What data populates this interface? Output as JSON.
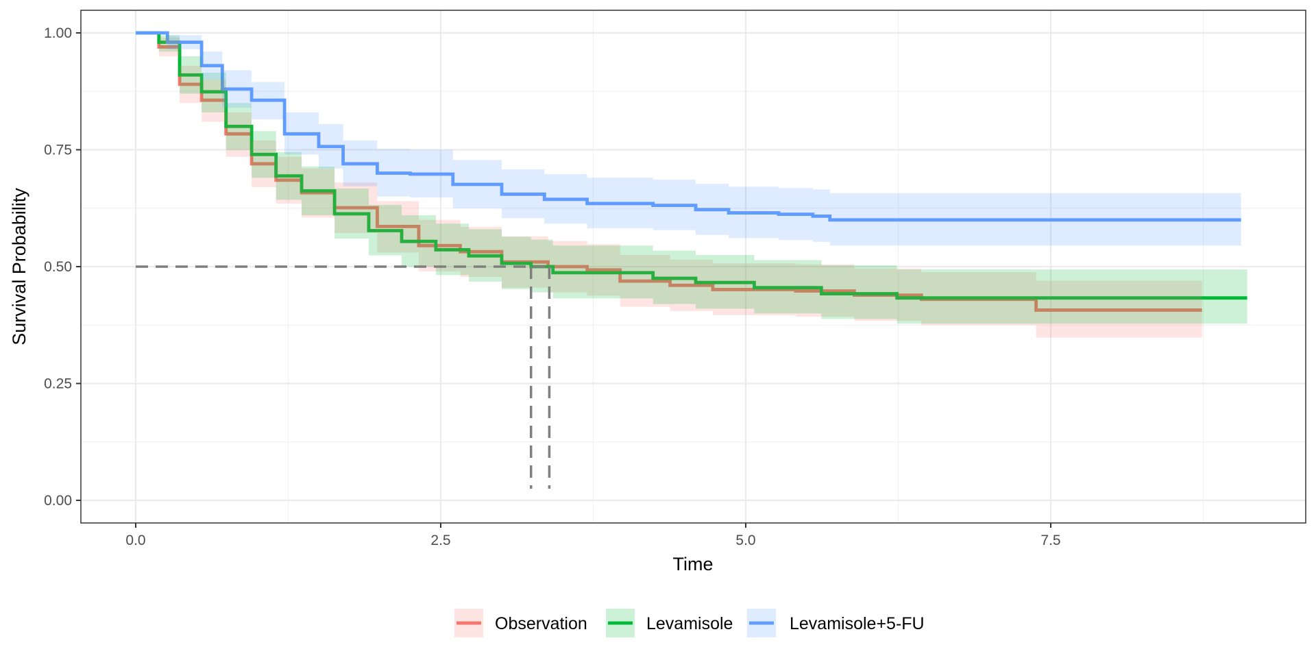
{
  "chart_data": {
    "type": "line",
    "subtype": "kaplan-meier step with confidence ribbons",
    "title": "",
    "xlabel": "Time",
    "ylabel": "Survival Probability",
    "xlim": [
      -0.45,
      9.55
    ],
    "ylim": [
      -0.05,
      1.05
    ],
    "x_ticks": [
      0,
      2.5,
      5,
      7.5
    ],
    "x_tick_labels": [
      "0.0",
      "2.5",
      "5.0",
      "7.5"
    ],
    "y_ticks": [
      0,
      0.25,
      0.5,
      0.75,
      1
    ],
    "y_tick_labels": [
      "0.00",
      "0.25",
      "0.50",
      "0.75",
      "1.00"
    ],
    "grid": true,
    "legend_position": "bottom",
    "median_line": {
      "y": 0.5,
      "medians": [
        3.24,
        3.39
      ],
      "style": "dashed"
    },
    "series": [
      {
        "name": "Observation",
        "color": "#F8766D",
        "points": [
          [
            0,
            1.0
          ],
          [
            0.19,
            0.97
          ],
          [
            0.36,
            0.89
          ],
          [
            0.54,
            0.856
          ],
          [
            0.74,
            0.784
          ],
          [
            0.95,
            0.72
          ],
          [
            1.15,
            0.685
          ],
          [
            1.36,
            0.658
          ],
          [
            1.63,
            0.626
          ],
          [
            1.98,
            0.586
          ],
          [
            2.32,
            0.545
          ],
          [
            2.66,
            0.532
          ],
          [
            3.0,
            0.51
          ],
          [
            3.38,
            0.5
          ],
          [
            3.7,
            0.493
          ],
          [
            3.97,
            0.469
          ],
          [
            4.38,
            0.46
          ],
          [
            4.73,
            0.451
          ],
          [
            5.41,
            0.448
          ],
          [
            5.89,
            0.439
          ],
          [
            6.44,
            0.43
          ],
          [
            7.38,
            0.407
          ],
          [
            8.74,
            0.407
          ]
        ],
        "ci_upper": [
          [
            0,
            1.0
          ],
          [
            0.19,
            0.99
          ],
          [
            0.36,
            0.93
          ],
          [
            0.54,
            0.9
          ],
          [
            0.74,
            0.83
          ],
          [
            0.95,
            0.77
          ],
          [
            1.15,
            0.735
          ],
          [
            1.36,
            0.71
          ],
          [
            1.63,
            0.68
          ],
          [
            1.98,
            0.64
          ],
          [
            2.32,
            0.6
          ],
          [
            2.66,
            0.585
          ],
          [
            3.0,
            0.565
          ],
          [
            3.38,
            0.555
          ],
          [
            3.7,
            0.548
          ],
          [
            3.97,
            0.525
          ],
          [
            4.38,
            0.515
          ],
          [
            4.73,
            0.507
          ],
          [
            5.41,
            0.505
          ],
          [
            5.89,
            0.496
          ],
          [
            6.44,
            0.488
          ],
          [
            7.38,
            0.47
          ],
          [
            8.74,
            0.47
          ]
        ],
        "ci_lower": [
          [
            0,
            1.0
          ],
          [
            0.19,
            0.95
          ],
          [
            0.36,
            0.85
          ],
          [
            0.54,
            0.81
          ],
          [
            0.74,
            0.735
          ],
          [
            0.95,
            0.67
          ],
          [
            1.15,
            0.635
          ],
          [
            1.36,
            0.605
          ],
          [
            1.63,
            0.572
          ],
          [
            1.98,
            0.53
          ],
          [
            2.32,
            0.49
          ],
          [
            2.66,
            0.478
          ],
          [
            3.0,
            0.455
          ],
          [
            3.38,
            0.445
          ],
          [
            3.7,
            0.438
          ],
          [
            3.97,
            0.414
          ],
          [
            4.38,
            0.405
          ],
          [
            4.73,
            0.396
          ],
          [
            5.41,
            0.393
          ],
          [
            5.89,
            0.384
          ],
          [
            6.44,
            0.375
          ],
          [
            7.38,
            0.348
          ],
          [
            8.74,
            0.348
          ]
        ]
      },
      {
        "name": "Levamisole",
        "color": "#00BA38",
        "points": [
          [
            0,
            1.0
          ],
          [
            0.19,
            0.98
          ],
          [
            0.36,
            0.91
          ],
          [
            0.54,
            0.874
          ],
          [
            0.74,
            0.8
          ],
          [
            0.95,
            0.74
          ],
          [
            1.15,
            0.694
          ],
          [
            1.36,
            0.662
          ],
          [
            1.63,
            0.613
          ],
          [
            1.91,
            0.577
          ],
          [
            2.18,
            0.554
          ],
          [
            2.46,
            0.536
          ],
          [
            2.73,
            0.523
          ],
          [
            3.0,
            0.507
          ],
          [
            3.24,
            0.5
          ],
          [
            3.42,
            0.487
          ],
          [
            3.97,
            0.487
          ],
          [
            4.24,
            0.475
          ],
          [
            4.59,
            0.466
          ],
          [
            5.07,
            0.455
          ],
          [
            5.62,
            0.442
          ],
          [
            6.24,
            0.433
          ],
          [
            9.11,
            0.433
          ]
        ],
        "ci_upper": [
          [
            0,
            1.0
          ],
          [
            0.19,
            0.995
          ],
          [
            0.36,
            0.95
          ],
          [
            0.54,
            0.915
          ],
          [
            0.74,
            0.85
          ],
          [
            0.95,
            0.79
          ],
          [
            1.15,
            0.745
          ],
          [
            1.36,
            0.714
          ],
          [
            1.63,
            0.667
          ],
          [
            1.91,
            0.632
          ],
          [
            2.18,
            0.61
          ],
          [
            2.46,
            0.592
          ],
          [
            2.73,
            0.58
          ],
          [
            3.0,
            0.564
          ],
          [
            3.24,
            0.558
          ],
          [
            3.42,
            0.545
          ],
          [
            3.97,
            0.545
          ],
          [
            4.24,
            0.534
          ],
          [
            4.59,
            0.525
          ],
          [
            5.07,
            0.514
          ],
          [
            5.62,
            0.503
          ],
          [
            6.24,
            0.494
          ],
          [
            9.11,
            0.494
          ]
        ],
        "ci_lower": [
          [
            0,
            1.0
          ],
          [
            0.19,
            0.96
          ],
          [
            0.36,
            0.87
          ],
          [
            0.54,
            0.83
          ],
          [
            0.74,
            0.75
          ],
          [
            0.95,
            0.69
          ],
          [
            1.15,
            0.643
          ],
          [
            1.36,
            0.61
          ],
          [
            1.63,
            0.56
          ],
          [
            1.91,
            0.524
          ],
          [
            2.18,
            0.5
          ],
          [
            2.46,
            0.482
          ],
          [
            2.73,
            0.468
          ],
          [
            3.0,
            0.452
          ],
          [
            3.24,
            0.445
          ],
          [
            3.42,
            0.432
          ],
          [
            3.97,
            0.432
          ],
          [
            4.24,
            0.42
          ],
          [
            4.59,
            0.41
          ],
          [
            5.07,
            0.4
          ],
          [
            5.62,
            0.388
          ],
          [
            6.24,
            0.378
          ],
          [
            9.11,
            0.378
          ]
        ]
      },
      {
        "name": "Levamisole+5-FU",
        "color": "#619CFF",
        "points": [
          [
            0,
            1.0
          ],
          [
            0.26,
            0.98
          ],
          [
            0.54,
            0.93
          ],
          [
            0.71,
            0.88
          ],
          [
            0.95,
            0.856
          ],
          [
            1.22,
            0.784
          ],
          [
            1.5,
            0.757
          ],
          [
            1.7,
            0.72
          ],
          [
            1.98,
            0.7
          ],
          [
            2.25,
            0.698
          ],
          [
            2.6,
            0.676
          ],
          [
            3.0,
            0.655
          ],
          [
            3.35,
            0.644
          ],
          [
            3.7,
            0.635
          ],
          [
            4.24,
            0.631
          ],
          [
            4.59,
            0.622
          ],
          [
            4.86,
            0.615
          ],
          [
            5.27,
            0.612
          ],
          [
            5.55,
            0.608
          ],
          [
            5.69,
            0.6
          ],
          [
            9.06,
            0.6
          ]
        ],
        "ci_upper": [
          [
            0,
            1.0
          ],
          [
            0.26,
            0.995
          ],
          [
            0.54,
            0.96
          ],
          [
            0.71,
            0.92
          ],
          [
            0.95,
            0.895
          ],
          [
            1.22,
            0.83
          ],
          [
            1.5,
            0.805
          ],
          [
            1.7,
            0.77
          ],
          [
            1.98,
            0.752
          ],
          [
            2.25,
            0.75
          ],
          [
            2.6,
            0.728
          ],
          [
            3.0,
            0.708
          ],
          [
            3.35,
            0.698
          ],
          [
            3.7,
            0.69
          ],
          [
            4.24,
            0.686
          ],
          [
            4.59,
            0.677
          ],
          [
            4.86,
            0.671
          ],
          [
            5.27,
            0.668
          ],
          [
            5.55,
            0.665
          ],
          [
            5.69,
            0.657
          ],
          [
            9.06,
            0.657
          ]
        ],
        "ci_lower": [
          [
            0,
            1.0
          ],
          [
            0.26,
            0.965
          ],
          [
            0.54,
            0.9
          ],
          [
            0.71,
            0.84
          ],
          [
            0.95,
            0.815
          ],
          [
            1.22,
            0.74
          ],
          [
            1.5,
            0.71
          ],
          [
            1.7,
            0.672
          ],
          [
            1.98,
            0.65
          ],
          [
            2.25,
            0.648
          ],
          [
            2.6,
            0.625
          ],
          [
            3.0,
            0.604
          ],
          [
            3.35,
            0.592
          ],
          [
            3.7,
            0.582
          ],
          [
            4.24,
            0.578
          ],
          [
            4.59,
            0.568
          ],
          [
            4.86,
            0.561
          ],
          [
            5.27,
            0.557
          ],
          [
            5.55,
            0.553
          ],
          [
            5.69,
            0.545
          ],
          [
            9.06,
            0.545
          ]
        ]
      }
    ]
  }
}
